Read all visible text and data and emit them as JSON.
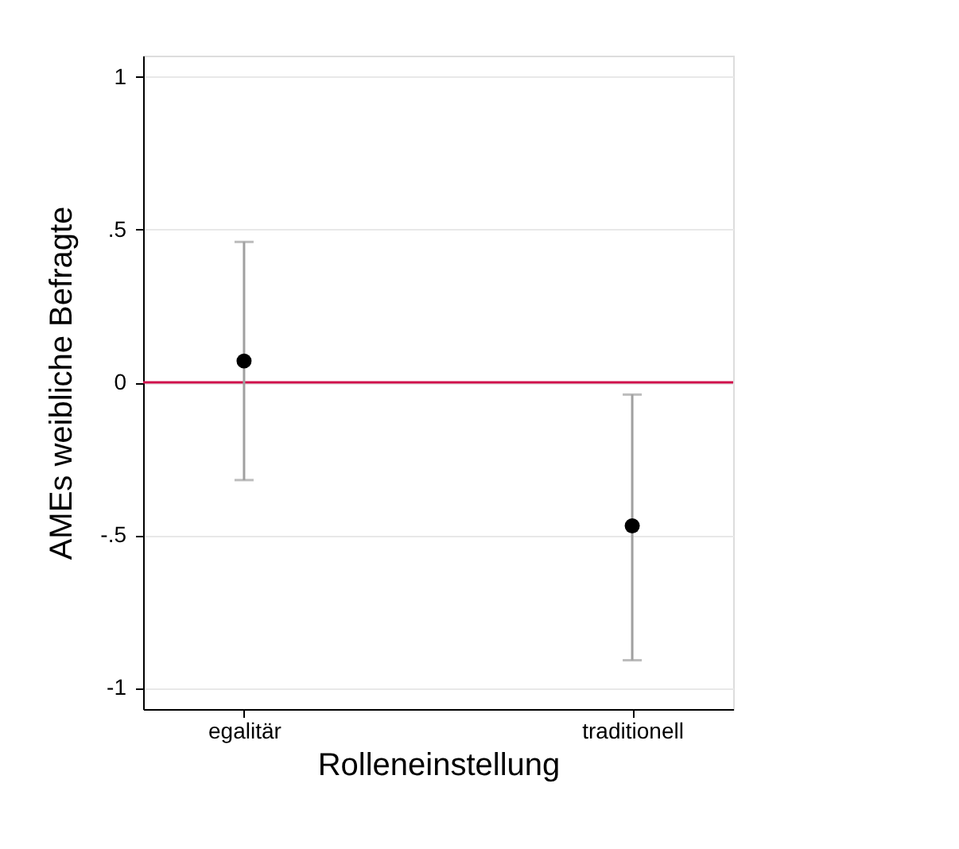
{
  "chart_data": {
    "type": "scatter",
    "xlabel": "Rolleneinstellung",
    "ylabel": "AMEs weibliche Befragte",
    "categories": [
      "egalitär",
      "traditionell"
    ],
    "series": [
      {
        "color": "#000000",
        "values": [
          0.07,
          -0.47
        ],
        "errors": [
          [
            -0.32,
            0.46
          ],
          [
            -0.91,
            -0.04
          ]
        ]
      }
    ],
    "ylim": [
      -1.07,
      1.07
    ],
    "yticks": [
      {
        "value": -1,
        "label": "-1"
      },
      {
        "value": -0.5,
        "label": "-.5"
      },
      0,
      {
        "value": 0.5,
        "label": ".5"
      },
      1
    ],
    "ref_lines": [
      {
        "axis": "y",
        "value": 0,
        "color": "#d0104c"
      }
    ],
    "grid": "y",
    "marker": "circle"
  }
}
